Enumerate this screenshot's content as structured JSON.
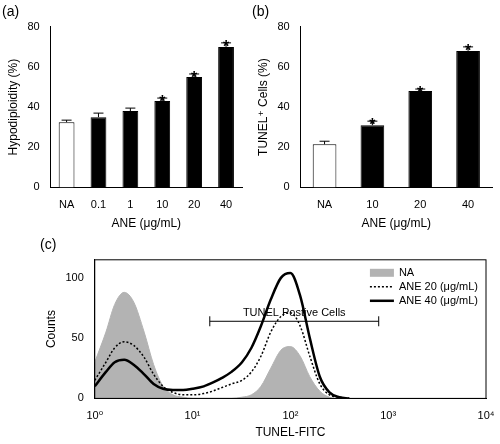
{
  "chart_data": [
    {
      "type": "bar",
      "title": "(a)",
      "y_label": "Hypodiploidity (%)",
      "x_label": "ANE (μg/mL)",
      "categories": [
        "NA",
        "0.1",
        "1",
        "10",
        "20",
        "40"
      ],
      "values": [
        32.5,
        35,
        38,
        43,
        55,
        70
      ],
      "errors": [
        1,
        2,
        1.5,
        1.5,
        1.5,
        2
      ],
      "colors": [
        "#ffffff",
        "#000000",
        "#000000",
        "#000000",
        "#000000",
        "#000000"
      ],
      "ylim": [
        0,
        80
      ],
      "yticks": [
        0,
        20,
        40,
        60,
        80
      ],
      "grid": false,
      "annotations": [
        {
          "category": "10",
          "text": "*"
        },
        {
          "category": "20",
          "text": "*"
        },
        {
          "category": "40",
          "text": "*"
        }
      ]
    },
    {
      "type": "bar",
      "title": "(b)",
      "y_label": "TUNEL⁺ Cells (%)",
      "x_label": "ANE (μg/mL)",
      "categories": [
        "NA",
        "10",
        "20",
        "40"
      ],
      "values": [
        21.5,
        31,
        48,
        68
      ],
      "errors": [
        1.5,
        2,
        1,
        2
      ],
      "colors": [
        "#ffffff",
        "#000000",
        "#000000",
        "#000000"
      ],
      "ylim": [
        0,
        80
      ],
      "yticks": [
        0,
        20,
        40,
        60,
        80
      ],
      "grid": false,
      "annotations": [
        {
          "category": "10",
          "text": "*"
        },
        {
          "category": "20",
          "text": "*"
        },
        {
          "category": "40",
          "text": "*"
        }
      ]
    },
    {
      "type": "line",
      "title": "(c)",
      "x_label": "TUNEL-FITC",
      "y_label": "Counts",
      "log": "x",
      "x": [
        1,
        1.3,
        1.6,
        2,
        2.5,
        3.2,
        4,
        5,
        6.3,
        8,
        10,
        13,
        16,
        20,
        25,
        32,
        40,
        50,
        63,
        80,
        100,
        126,
        158,
        200,
        251,
        316,
        400
      ],
      "xlim": [
        1,
        10000
      ],
      "xticks": [
        {
          "value": 1,
          "label": "10⁰"
        },
        {
          "value": 10,
          "label": "10¹"
        },
        {
          "value": 100,
          "label": "10²"
        },
        {
          "value": 1000,
          "label": "10³"
        },
        {
          "value": 10000,
          "label": "10⁴"
        }
      ],
      "ylim": [
        0,
        115
      ],
      "yticks": [
        0,
        50,
        100
      ],
      "grid": false,
      "legend": "upper right",
      "series": [
        {
          "name": "NA",
          "color": "#b3b3b3",
          "type": "area",
          "line_style": "solid",
          "values": [
            30,
            55,
            78,
            88,
            80,
            55,
            28,
            10,
            3,
            1,
            0,
            0,
            0,
            0,
            0,
            1,
            3,
            10,
            25,
            40,
            43,
            35,
            18,
            6,
            1,
            0,
            0
          ]
        },
        {
          "name": "ANE 20 (μg/mL)",
          "color": "#000000",
          "type": "line",
          "line_style": "dotted",
          "values": [
            15,
            30,
            42,
            47,
            44,
            34,
            20,
            10,
            5,
            3,
            3,
            4,
            6,
            9,
            12,
            15,
            22,
            35,
            55,
            68,
            71,
            60,
            35,
            12,
            3,
            1,
            0
          ]
        },
        {
          "name": "ANE 40 (μg/mL)",
          "color": "#000000",
          "type": "line",
          "line_style": "solid",
          "values": [
            10,
            22,
            30,
            32,
            28,
            20,
            12,
            8,
            7,
            7,
            8,
            10,
            13,
            17,
            22,
            30,
            42,
            60,
            82,
            100,
            104,
            85,
            50,
            18,
            5,
            1,
            0
          ]
        }
      ],
      "annotations": [
        {
          "text": "TUNEL Postive Cells",
          "x": [
            15,
            800
          ],
          "y": 64
        }
      ]
    }
  ]
}
